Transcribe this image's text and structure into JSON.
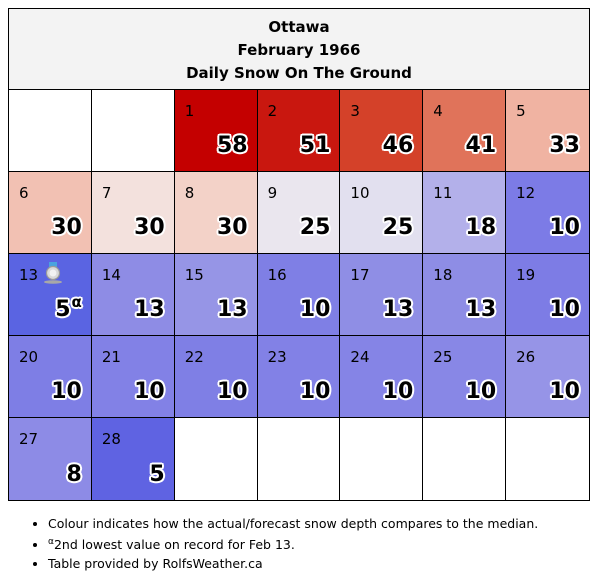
{
  "header": {
    "city": "Ottawa",
    "period": "February 1966",
    "subtitle": "Daily Snow On The Ground"
  },
  "calendar": [
    {
      "day": "",
      "value": "",
      "color": "#ffffff"
    },
    {
      "day": "",
      "value": "",
      "color": "#ffffff"
    },
    {
      "day": "1",
      "value": "58",
      "color": "#c40000"
    },
    {
      "day": "2",
      "value": "51",
      "color": "#c9170f"
    },
    {
      "day": "3",
      "value": "46",
      "color": "#d44129"
    },
    {
      "day": "4",
      "value": "41",
      "color": "#e0735a"
    },
    {
      "day": "5",
      "value": "33",
      "color": "#f0b3a2"
    },
    {
      "day": "6",
      "value": "30",
      "color": "#f2c1b3"
    },
    {
      "day": "7",
      "value": "30",
      "color": "#f3e1dd"
    },
    {
      "day": "8",
      "value": "30",
      "color": "#f3d2c8"
    },
    {
      "day": "9",
      "value": "25",
      "color": "#eae6ee"
    },
    {
      "day": "10",
      "value": "25",
      "color": "#e2e0ef"
    },
    {
      "day": "11",
      "value": "18",
      "color": "#b3b0ea"
    },
    {
      "day": "12",
      "value": "10",
      "color": "#7c7be6"
    },
    {
      "day": "13",
      "value": "5",
      "sup": "α",
      "medal": "silver-medal-icon",
      "color": "#5a64e2"
    },
    {
      "day": "14",
      "value": "13",
      "color": "#8e8ce5"
    },
    {
      "day": "15",
      "value": "13",
      "color": "#9695e6"
    },
    {
      "day": "16",
      "value": "10",
      "color": "#7f7fe5"
    },
    {
      "day": "17",
      "value": "13",
      "color": "#8f8ee5"
    },
    {
      "day": "18",
      "value": "13",
      "color": "#8e8de5"
    },
    {
      "day": "19",
      "value": "10",
      "color": "#7d7ce5"
    },
    {
      "day": "20",
      "value": "10",
      "color": "#7e7ee5"
    },
    {
      "day": "21",
      "value": "10",
      "color": "#8281e6"
    },
    {
      "day": "22",
      "value": "10",
      "color": "#7f7fe5"
    },
    {
      "day": "23",
      "value": "10",
      "color": "#8281e6"
    },
    {
      "day": "24",
      "value": "10",
      "color": "#8584e6"
    },
    {
      "day": "25",
      "value": "10",
      "color": "#8887e6"
    },
    {
      "day": "26",
      "value": "10",
      "color": "#9694e7"
    },
    {
      "day": "27",
      "value": "8",
      "color": "#8d8be6"
    },
    {
      "day": "28",
      "value": "5",
      "color": "#5f63e2"
    },
    {
      "day": "",
      "value": "",
      "color": "#ffffff"
    },
    {
      "day": "",
      "value": "",
      "color": "#ffffff"
    },
    {
      "day": "",
      "value": "",
      "color": "#ffffff"
    },
    {
      "day": "",
      "value": "",
      "color": "#ffffff"
    },
    {
      "day": "",
      "value": "",
      "color": "#ffffff"
    }
  ],
  "notes": {
    "note1": "Colour indicates how the actual/forecast snow depth compares to the median.",
    "note2_sup": "α",
    "note2": "2nd lowest value on record for Feb 13.",
    "note3": "Table provided by RolfsWeather.ca"
  }
}
